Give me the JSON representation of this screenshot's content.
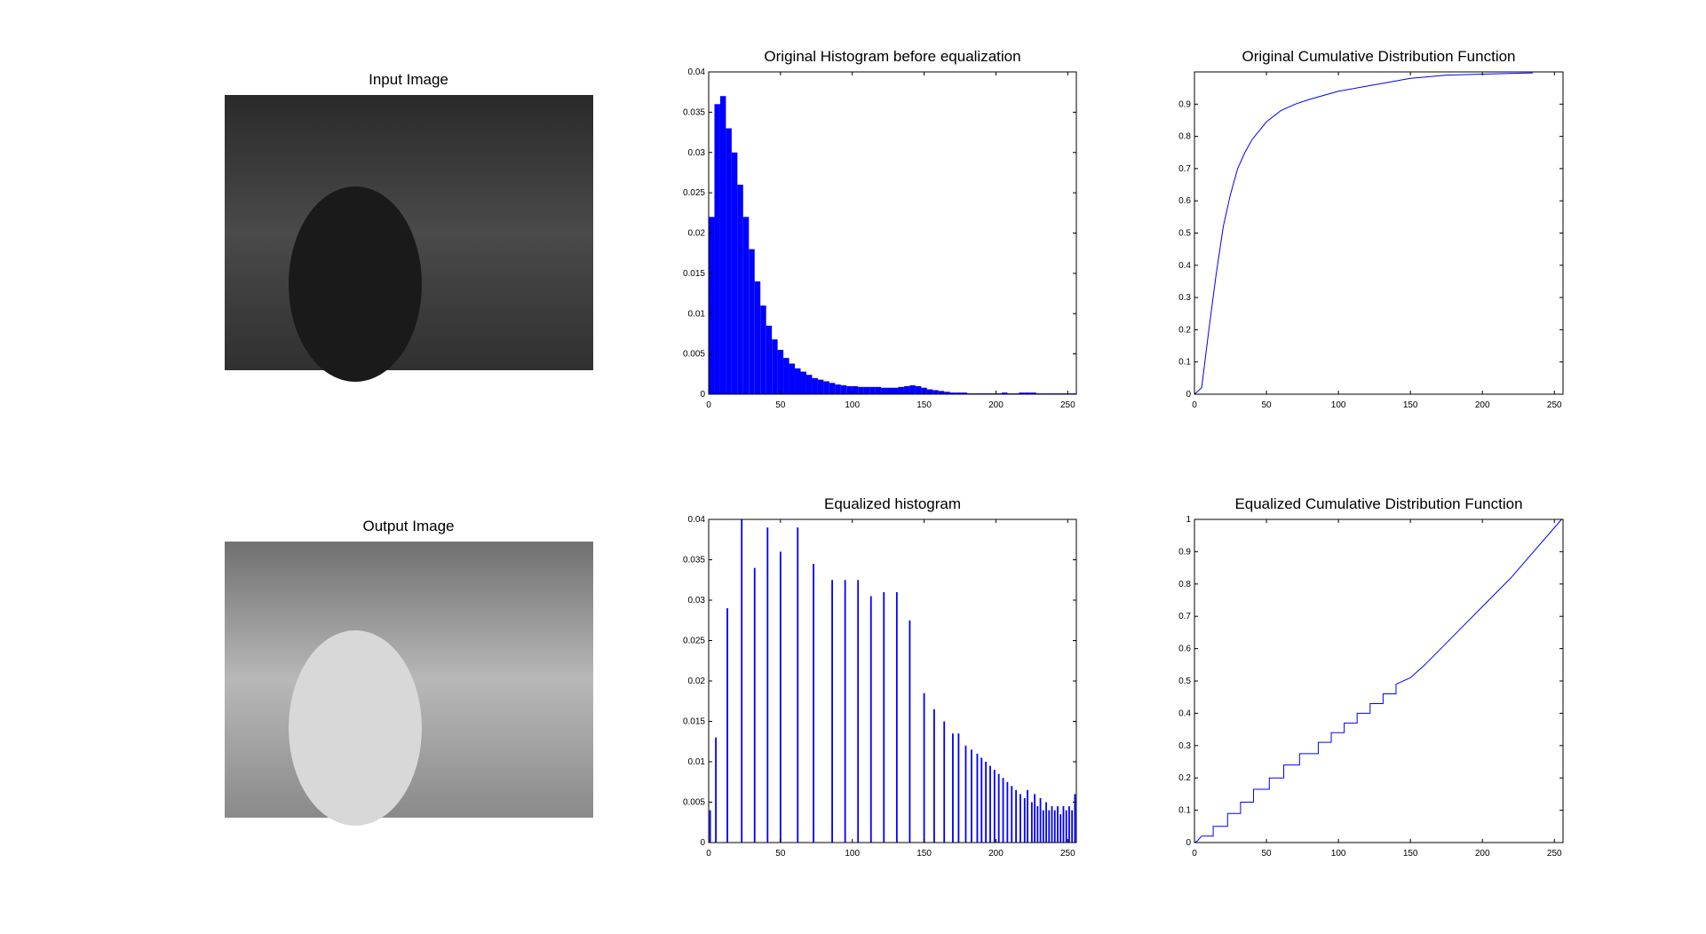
{
  "images": [
    {
      "title": "Input Image"
    },
    {
      "title": "Output Image"
    }
  ],
  "chart_data": [
    {
      "type": "histogram",
      "title": "Original Histogram before equalization",
      "color": "#0000ff",
      "bins": [
        0,
        4,
        8,
        12,
        16,
        20,
        24,
        28,
        32,
        36,
        40,
        44,
        48,
        52,
        56,
        60,
        64,
        68,
        72,
        76,
        80,
        84,
        88,
        92,
        96,
        100,
        104,
        108,
        112,
        116,
        120,
        124,
        128,
        132,
        136,
        140,
        144,
        148,
        152,
        156,
        160,
        164,
        168,
        172,
        176,
        180,
        184,
        188,
        192,
        196,
        200,
        204,
        208,
        212,
        216,
        220,
        224,
        228,
        232,
        236,
        240,
        244,
        248,
        252,
        256
      ],
      "values": [
        0.022,
        0.036,
        0.037,
        0.033,
        0.03,
        0.026,
        0.022,
        0.018,
        0.014,
        0.011,
        0.0085,
        0.0068,
        0.0055,
        0.0045,
        0.0038,
        0.0032,
        0.0028,
        0.0024,
        0.002,
        0.0018,
        0.0016,
        0.0014,
        0.0012,
        0.0011,
        0.001,
        0.001,
        0.0009,
        0.0009,
        0.0009,
        0.0009,
        0.0008,
        0.0008,
        0.0008,
        0.0009,
        0.001,
        0.0011,
        0.001,
        0.0008,
        0.0006,
        0.0005,
        0.0004,
        0.0003,
        0.0002,
        0.0002,
        0.0002,
        0.0001,
        0.0001,
        0.0001,
        0.0001,
        0.0001,
        0.0001,
        0.0002,
        0.0001,
        0.0001,
        0.0002,
        0.0002,
        0.0002,
        0.0001,
        0.0001,
        0.0001,
        0.0001,
        0.0001,
        0.0001,
        0.0001
      ],
      "xlim": [
        0,
        256
      ],
      "xticks": [
        0,
        50,
        100,
        150,
        200,
        250
      ],
      "ylim": [
        0,
        0.04
      ],
      "yticks": [
        0,
        0.005,
        0.01,
        0.015,
        0.02,
        0.025,
        0.03,
        0.035,
        0.04
      ]
    },
    {
      "type": "line",
      "title": "Original Cumulative Distribution Function",
      "color": "#0000ff",
      "x": [
        0,
        5,
        10,
        15,
        20,
        25,
        30,
        35,
        40,
        50,
        60,
        70,
        80,
        100,
        125,
        150,
        175,
        200,
        235
      ],
      "values": [
        0,
        0.02,
        0.2,
        0.37,
        0.52,
        0.62,
        0.7,
        0.75,
        0.79,
        0.845,
        0.88,
        0.9,
        0.915,
        0.94,
        0.96,
        0.98,
        0.99,
        0.993,
        0.997
      ],
      "xlim": [
        0,
        256
      ],
      "xticks": [
        0,
        50,
        100,
        150,
        200,
        250
      ],
      "ylim": [
        0,
        1
      ],
      "yticks": [
        0,
        0.1,
        0.2,
        0.3,
        0.4,
        0.5,
        0.6,
        0.7,
        0.8,
        0.9
      ]
    },
    {
      "type": "bar",
      "title": "Equalized histogram",
      "color": "#0000ff",
      "x": [
        1,
        5,
        13,
        23,
        32,
        41,
        50,
        62,
        73,
        86,
        95,
        104,
        113,
        122,
        131,
        140,
        150,
        157,
        164,
        170,
        174,
        179,
        183,
        187,
        190,
        193,
        196,
        199,
        202,
        205,
        208,
        211,
        214,
        217,
        220,
        222,
        225,
        227,
        229,
        231,
        233,
        235,
        237,
        239,
        241,
        243,
        245,
        247,
        249,
        251,
        253,
        255
      ],
      "values": [
        0.004,
        0.013,
        0.029,
        0.04,
        0.034,
        0.039,
        0.036,
        0.039,
        0.0345,
        0.0325,
        0.0325,
        0.0325,
        0.0305,
        0.031,
        0.031,
        0.0275,
        0.0185,
        0.0165,
        0.015,
        0.0135,
        0.0135,
        0.012,
        0.0115,
        0.011,
        0.0105,
        0.01,
        0.0095,
        0.009,
        0.0085,
        0.008,
        0.0075,
        0.007,
        0.0065,
        0.006,
        0.0055,
        0.0065,
        0.005,
        0.006,
        0.0045,
        0.0055,
        0.004,
        0.005,
        0.004,
        0.0045,
        0.004,
        0.0045,
        0.0035,
        0.0045,
        0.004,
        0.0045,
        0.004,
        0.006
      ],
      "xlim": [
        0,
        256
      ],
      "xticks": [
        0,
        50,
        100,
        150,
        200,
        250
      ],
      "ylim": [
        0,
        0.04
      ],
      "yticks": [
        0,
        0.005,
        0.01,
        0.015,
        0.02,
        0.025,
        0.03,
        0.035,
        0.04
      ]
    },
    {
      "type": "line",
      "title": "Equalized Cumulative Distribution Function",
      "color": "#0000ff",
      "x": [
        0,
        2,
        5,
        13,
        13,
        23,
        23,
        32,
        32,
        41,
        41,
        52,
        52,
        62,
        62,
        73,
        73,
        86,
        86,
        95,
        95,
        104,
        104,
        113,
        113,
        122,
        122,
        131,
        131,
        140,
        140,
        150,
        160,
        180,
        200,
        220,
        255
      ],
      "values": [
        0,
        0.005,
        0.02,
        0.02,
        0.05,
        0.05,
        0.09,
        0.09,
        0.125,
        0.125,
        0.165,
        0.165,
        0.2,
        0.2,
        0.24,
        0.24,
        0.275,
        0.275,
        0.31,
        0.31,
        0.34,
        0.34,
        0.37,
        0.37,
        0.4,
        0.4,
        0.43,
        0.43,
        0.46,
        0.46,
        0.49,
        0.51,
        0.55,
        0.64,
        0.73,
        0.82,
        1
      ],
      "xlim": [
        0,
        256
      ],
      "xticks": [
        0,
        50,
        100,
        150,
        200,
        250
      ],
      "ylim": [
        0,
        1
      ],
      "yticks": [
        0,
        0.1,
        0.2,
        0.3,
        0.4,
        0.5,
        0.6,
        0.7,
        0.8,
        0.9,
        1
      ]
    }
  ]
}
